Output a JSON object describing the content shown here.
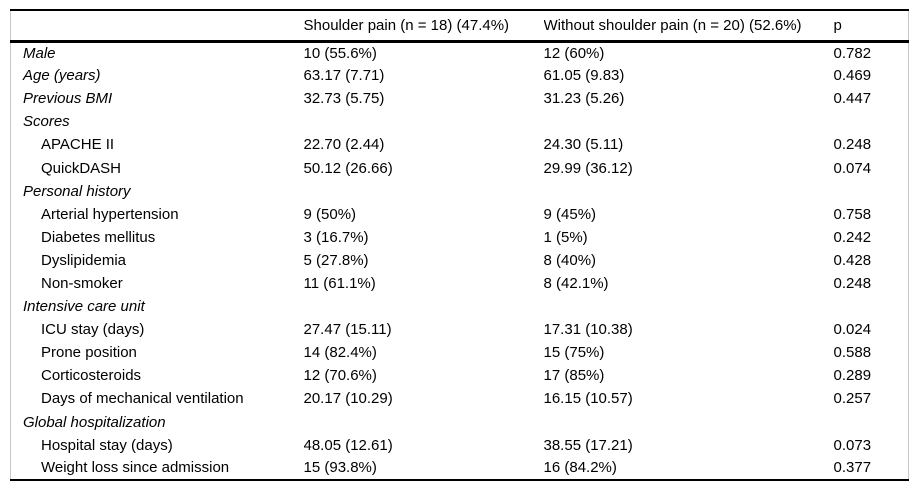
{
  "page": {
    "background_color": "#ffffff",
    "text_color": "#000000",
    "rule_color": "#000000",
    "frame_color": "#c9c9c9"
  },
  "table": {
    "header": {
      "col_label": "",
      "col_group1": "Shoulder pain (n = 18) (47.4%)",
      "col_group2": "Without shoulder pain (n = 20) (52.6%)",
      "col_p": "p"
    },
    "rows": [
      {
        "label": "Male",
        "italic": true,
        "indent": false,
        "section": false,
        "values": [
          "10 (55.6%)",
          "12 (60%)",
          "0.782"
        ]
      },
      {
        "label": "Age (years)",
        "italic": true,
        "indent": false,
        "section": false,
        "values": [
          "63.17 (7.71)",
          "61.05 (9.83)",
          "0.469"
        ]
      },
      {
        "label": "Previous BMI",
        "italic": true,
        "indent": false,
        "section": false,
        "values": [
          "32.73 (5.75)",
          "31.23 (5.26)",
          "0.447"
        ]
      },
      {
        "label": "Scores",
        "italic": true,
        "indent": false,
        "section": true,
        "values": [
          "",
          "",
          ""
        ]
      },
      {
        "label": "APACHE II",
        "italic": false,
        "indent": true,
        "section": false,
        "values": [
          "22.70 (2.44)",
          "24.30 (5.11)",
          "0.248"
        ]
      },
      {
        "label": "QuickDASH",
        "italic": false,
        "indent": true,
        "section": false,
        "values": [
          "50.12 (26.66)",
          "29.99 (36.12)",
          "0.074"
        ]
      },
      {
        "label": "Personal history",
        "italic": true,
        "indent": false,
        "section": true,
        "values": [
          "",
          "",
          ""
        ]
      },
      {
        "label": "Arterial hypertension",
        "italic": false,
        "indent": true,
        "section": false,
        "values": [
          "9 (50%)",
          "9 (45%)",
          "0.758"
        ]
      },
      {
        "label": "Diabetes mellitus",
        "italic": false,
        "indent": true,
        "section": false,
        "values": [
          "3 (16.7%)",
          "1 (5%)",
          "0.242"
        ]
      },
      {
        "label": "Dyslipidemia",
        "italic": false,
        "indent": true,
        "section": false,
        "values": [
          "5 (27.8%)",
          "8 (40%)",
          "0.428"
        ]
      },
      {
        "label": "Non-smoker",
        "italic": false,
        "indent": true,
        "section": false,
        "values": [
          "11 (61.1%)",
          "8 (42.1%)",
          "0.248"
        ]
      },
      {
        "label": "Intensive care unit",
        "italic": true,
        "indent": false,
        "section": true,
        "values": [
          "",
          "",
          ""
        ]
      },
      {
        "label": "ICU stay (days)",
        "italic": false,
        "indent": true,
        "section": false,
        "values": [
          "27.47 (15.11)",
          "17.31 (10.38)",
          "0.024"
        ]
      },
      {
        "label": "Prone position",
        "italic": false,
        "indent": true,
        "section": false,
        "values": [
          "14 (82.4%)",
          "15 (75%)",
          "0.588"
        ]
      },
      {
        "label": "Corticosteroids",
        "italic": false,
        "indent": true,
        "section": false,
        "values": [
          "12 (70.6%)",
          "17 (85%)",
          "0.289"
        ]
      },
      {
        "label": "Days of mechanical ventilation",
        "italic": false,
        "indent": true,
        "section": false,
        "values": [
          "20.17 (10.29)",
          "16.15 (10.57)",
          "0.257"
        ]
      },
      {
        "label": "Global hospitalization",
        "italic": true,
        "indent": false,
        "section": true,
        "values": [
          "",
          "",
          ""
        ]
      },
      {
        "label": "Hospital stay (days)",
        "italic": false,
        "indent": true,
        "section": false,
        "values": [
          "48.05 (12.61)",
          "38.55 (17.21)",
          "0.073"
        ]
      },
      {
        "label": "Weight loss since admission",
        "italic": false,
        "indent": true,
        "section": false,
        "values": [
          "15 (93.8%)",
          "16 (84.2%)",
          "0.377"
        ]
      }
    ]
  }
}
